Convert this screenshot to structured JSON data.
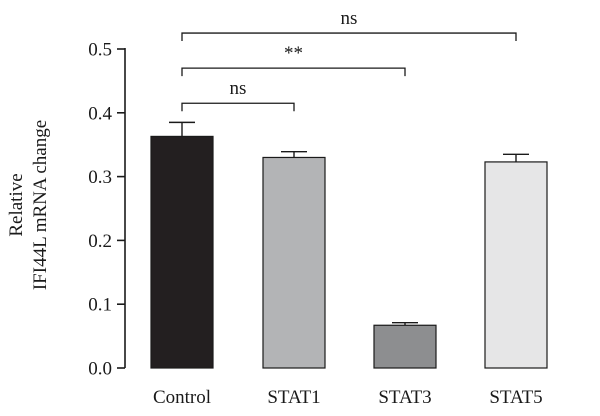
{
  "chart_data": {
    "type": "bar",
    "categories": [
      "Control",
      "STAT1",
      "STAT3",
      "STAT5"
    ],
    "values": [
      0.363,
      0.33,
      0.067,
      0.323
    ],
    "errors": [
      0.022,
      0.009,
      0.004,
      0.012
    ],
    "bar_colors": [
      "#231f20",
      "#b3b4b6",
      "#8d8e90",
      "#e6e6e7"
    ],
    "ylabel_lines": [
      "Relative",
      "IFI44L mRNA change"
    ],
    "xlabel": "",
    "title": "",
    "ylim": [
      0,
      0.5
    ],
    "yticks": [
      "0.0",
      "0.1",
      "0.2",
      "0.3",
      "0.4",
      "0.5"
    ],
    "ytick_values": [
      0,
      0.1,
      0.2,
      0.3,
      0.4,
      0.5
    ],
    "significance": [
      {
        "from": "Control",
        "to": "STAT1",
        "label": "ns",
        "level": 0.415
      },
      {
        "from": "Control",
        "to": "STAT3",
        "label": "**",
        "level": 0.47
      },
      {
        "from": "Control",
        "to": "STAT5",
        "label": "ns",
        "level": 0.525
      }
    ],
    "grid": false
  }
}
